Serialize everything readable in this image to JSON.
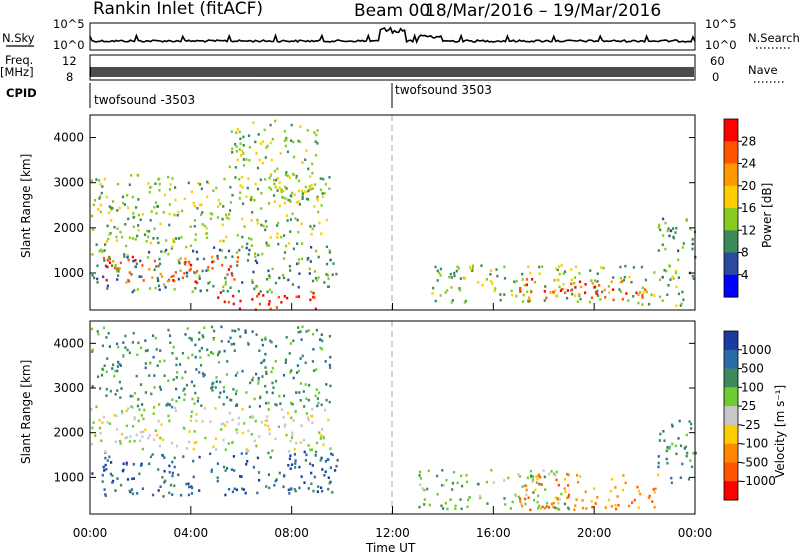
{
  "header": {
    "station": "Rankin Inlet (fitACF)",
    "beam": "Beam 00",
    "date_range": "18/Mar/2016 – 19/Mar/2016"
  },
  "sky_panel": {
    "left_label": "N.Sky",
    "left_ticks": [
      "10^5",
      "10^0"
    ],
    "right_label": "N.Search",
    "right_ticks": [
      "10^5",
      "10^0"
    ],
    "right_legend_style": "dotted"
  },
  "freq_panel": {
    "left_label_top": "Freq.",
    "left_label_unit": "[MHz]",
    "left_ticks": [
      "12",
      "8"
    ],
    "right_label": "Nave",
    "right_ticks": [
      "60",
      "0"
    ],
    "right_legend_style": "dotted"
  },
  "cpid_panel": {
    "label": "CPID",
    "segments": [
      {
        "name": "twofsound -3503",
        "start_hour": 0
      },
      {
        "name": "twofsound 3503",
        "start_hour": 12
      }
    ]
  },
  "time_axis": {
    "label": "Time UT",
    "ticks": [
      "00:00",
      "04:00",
      "08:00",
      "12:00",
      "16:00",
      "20:00",
      "00:00"
    ]
  },
  "chart_data": [
    {
      "type": "heatmap",
      "name": "power",
      "ylabel": "Slant Range [km]",
      "ylim": [
        180,
        4500
      ],
      "yticks": [
        1000,
        2000,
        3000,
        4000
      ],
      "xlim_hours": [
        0,
        24
      ],
      "colorbar": {
        "label": "Power [dB]",
        "ticks": [
          "28",
          "24",
          "20",
          "16",
          "12",
          "8",
          "4"
        ],
        "colors": [
          "#ff0000",
          "#ff5500",
          "#ff9900",
          "#ffcc00",
          "#88cc22",
          "#3a8a5a",
          "#2a4aa0",
          "#0000ff"
        ]
      },
      "regions": [
        {
          "t0": 0.0,
          "t1": 9.8,
          "r0": 600,
          "r1": 1600,
          "level": 5
        },
        {
          "t0": 0.5,
          "t1": 6.0,
          "r0": 800,
          "r1": 1400,
          "level": 1
        },
        {
          "t0": 0.0,
          "t1": 9.5,
          "r0": 1600,
          "r1": 3200,
          "level": 4
        },
        {
          "t0": 5.5,
          "t1": 9.0,
          "r0": 2500,
          "r1": 4400,
          "level": 4
        },
        {
          "t0": 5.0,
          "t1": 9.0,
          "r0": 200,
          "r1": 600,
          "level": 0
        },
        {
          "t0": 13.5,
          "t1": 23.5,
          "r0": 300,
          "r1": 1200,
          "level": 4
        },
        {
          "t0": 17.0,
          "t1": 22.0,
          "r0": 400,
          "r1": 900,
          "level": 1
        },
        {
          "t0": 22.5,
          "t1": 24.0,
          "r0": 900,
          "r1": 2300,
          "level": 5
        }
      ]
    },
    {
      "type": "heatmap",
      "name": "velocity",
      "ylabel": "Slant Range [km]",
      "ylim": [
        180,
        4500
      ],
      "yticks": [
        1000,
        2000,
        3000,
        4000
      ],
      "xlim_hours": [
        0,
        24
      ],
      "colorbar": {
        "label": "Velocity [m s⁻¹]",
        "ticks": [
          "1000",
          "500",
          "100",
          "25",
          "-25",
          "-100",
          "-500",
          "-1000"
        ],
        "colors": [
          "#1a3ca0",
          "#2a6aa8",
          "#3a8a5a",
          "#6ccc30",
          "#c8c8c8",
          "#ffcc00",
          "#ff8800",
          "#ff5500",
          "#ff0000"
        ]
      },
      "regions": [
        {
          "t0": 0.0,
          "t1": 9.8,
          "r0": 600,
          "r1": 1600,
          "level": 1
        },
        {
          "t0": 0.0,
          "t1": 9.5,
          "r0": 1600,
          "r1": 2600,
          "level": 4
        },
        {
          "t0": 0.0,
          "t1": 9.5,
          "r0": 2600,
          "r1": 4400,
          "level": 2
        },
        {
          "t0": 13.0,
          "t1": 19.0,
          "r0": 300,
          "r1": 1200,
          "level": 3
        },
        {
          "t0": 17.0,
          "t1": 22.5,
          "r0": 300,
          "r1": 1100,
          "level": 6
        },
        {
          "t0": 22.5,
          "t1": 24.0,
          "r0": 900,
          "r1": 2300,
          "level": 2
        }
      ]
    }
  ]
}
